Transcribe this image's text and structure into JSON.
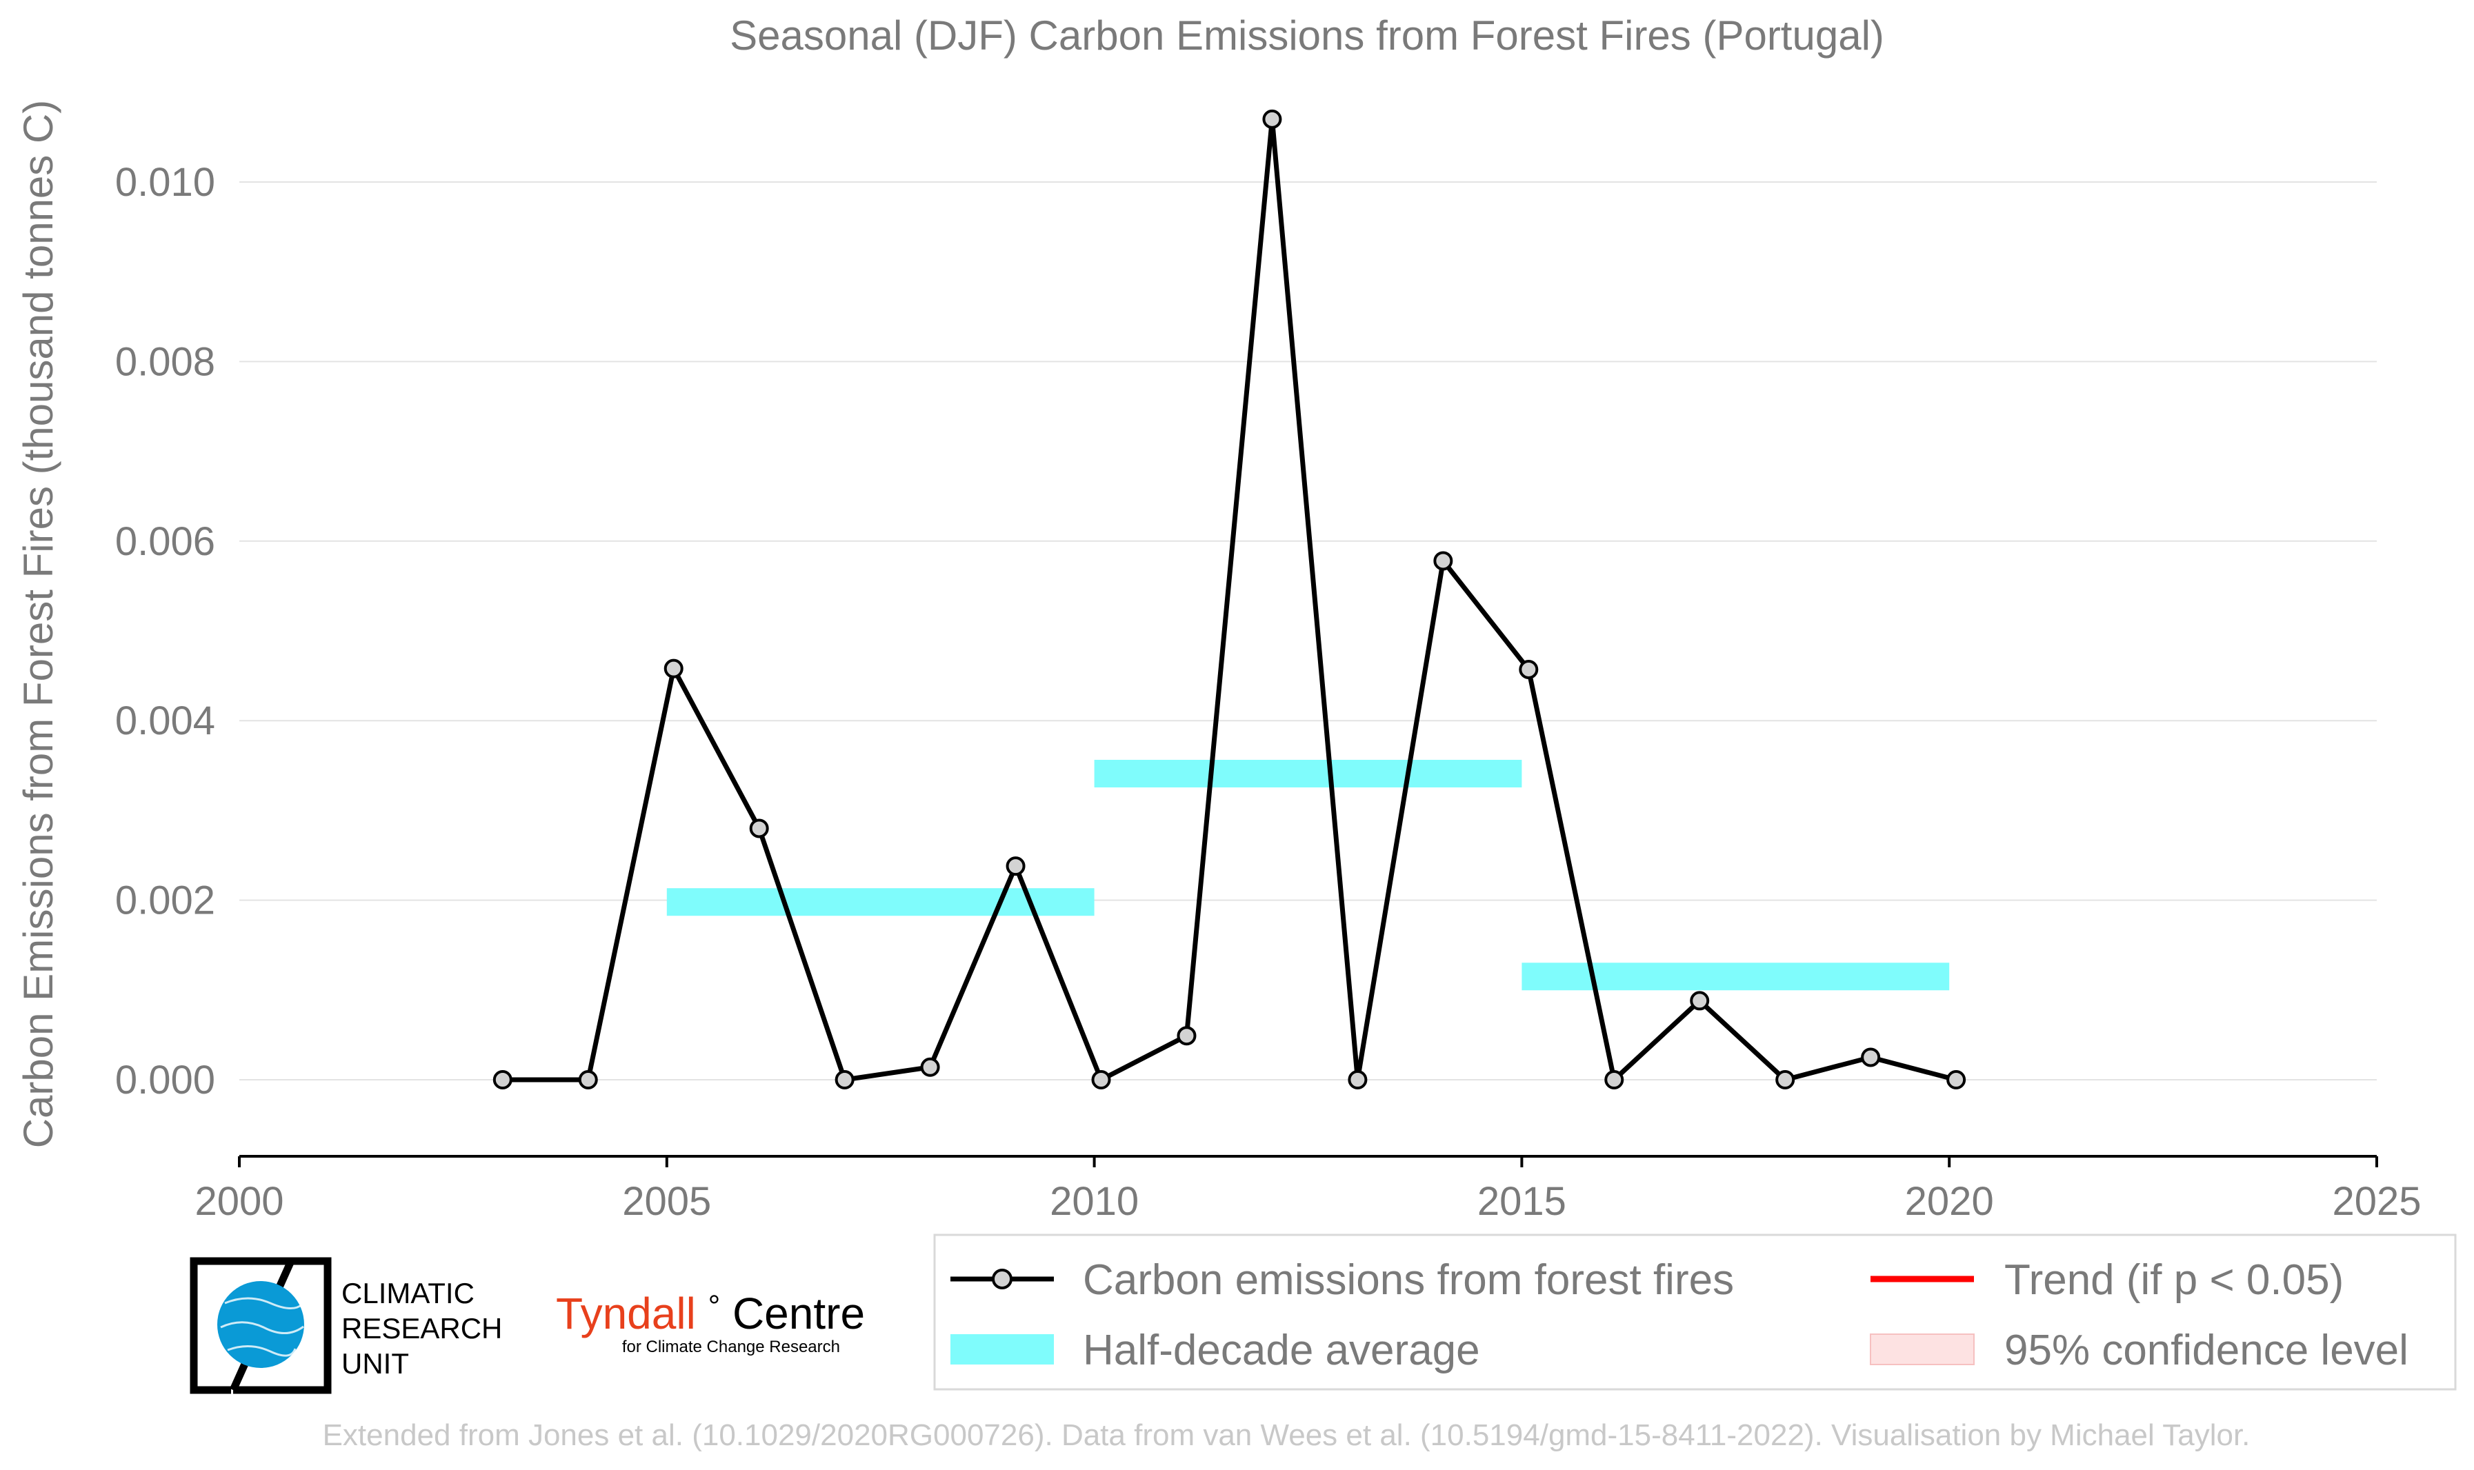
{
  "chart_data": {
    "type": "line",
    "title": "Seasonal (DJF) Carbon Emissions from Forest Fires (Portugal)",
    "xlabel": "",
    "ylabel": "Carbon Emissions from Forest Fires (thousand tonnes C)",
    "xlim": [
      2000,
      2025
    ],
    "ylim": [
      -0.00085,
      0.0112
    ],
    "x_ticks": [
      "2000",
      "2005",
      "2010",
      "2015",
      "2020",
      "2025"
    ],
    "y_ticks": [
      "0.000",
      "0.002",
      "0.004",
      "0.006",
      "0.008",
      "0.010"
    ],
    "grid": "horizontal",
    "series": [
      {
        "name": "Carbon emissions from forest fires",
        "color": "#000000",
        "marker_fill": "#d3d3d3",
        "x": [
          2003,
          2004,
          2005,
          2006,
          2007,
          2008,
          2009,
          2010,
          2011,
          2012,
          2013,
          2014,
          2015,
          2016,
          2017,
          2018,
          2019,
          2020
        ],
        "y": [
          0.0,
          0.0,
          0.00458,
          0.0028,
          0.0,
          0.00014,
          0.00238,
          0.0,
          0.00049,
          0.0107,
          0.0,
          0.00578,
          0.00457,
          0.0,
          0.00088,
          0.0,
          0.00025,
          0.0
        ]
      }
    ],
    "half_decade_average": {
      "name": "Half-decade average",
      "color": "#7ffcfc",
      "segments": [
        {
          "x_start": 2005,
          "x_end": 2010,
          "value": 0.00198
        },
        {
          "x_start": 2010,
          "x_end": 2015,
          "value": 0.00341
        },
        {
          "x_start": 2015,
          "x_end": 2020,
          "value": 0.00115
        }
      ]
    },
    "legend": {
      "placement": "bottom",
      "entries": [
        {
          "label": "Carbon emissions from forest fires",
          "kind": "line-marker",
          "color": "#000000"
        },
        {
          "label": "Trend (if p < 0.05)",
          "kind": "line",
          "color": "#ff0000"
        },
        {
          "label": "Half-decade average",
          "kind": "patch",
          "color": "#7ffcfc"
        },
        {
          "label": "95% confidence level",
          "kind": "patch",
          "color": "#fde2e2"
        }
      ]
    }
  },
  "logos": {
    "cru_line1": "CLIMATIC",
    "cru_line2": "RESEARCH",
    "cru_line3": "UNIT",
    "tyndall_name": "Tyndall",
    "tyndall_degree": "°",
    "tyndall_centre": "Centre",
    "tyndall_sub": "for Climate Change Research",
    "globe_icon": "globe-icon",
    "tyndall_color": "#e8401c",
    "globe_color": "#0a9ad6"
  },
  "credit": "Extended from Jones et al. (10.1029/2020RG000726). Data from van Wees et al. (10.5194/gmd-15-8411-2022). Visualisation by Michael Taylor."
}
